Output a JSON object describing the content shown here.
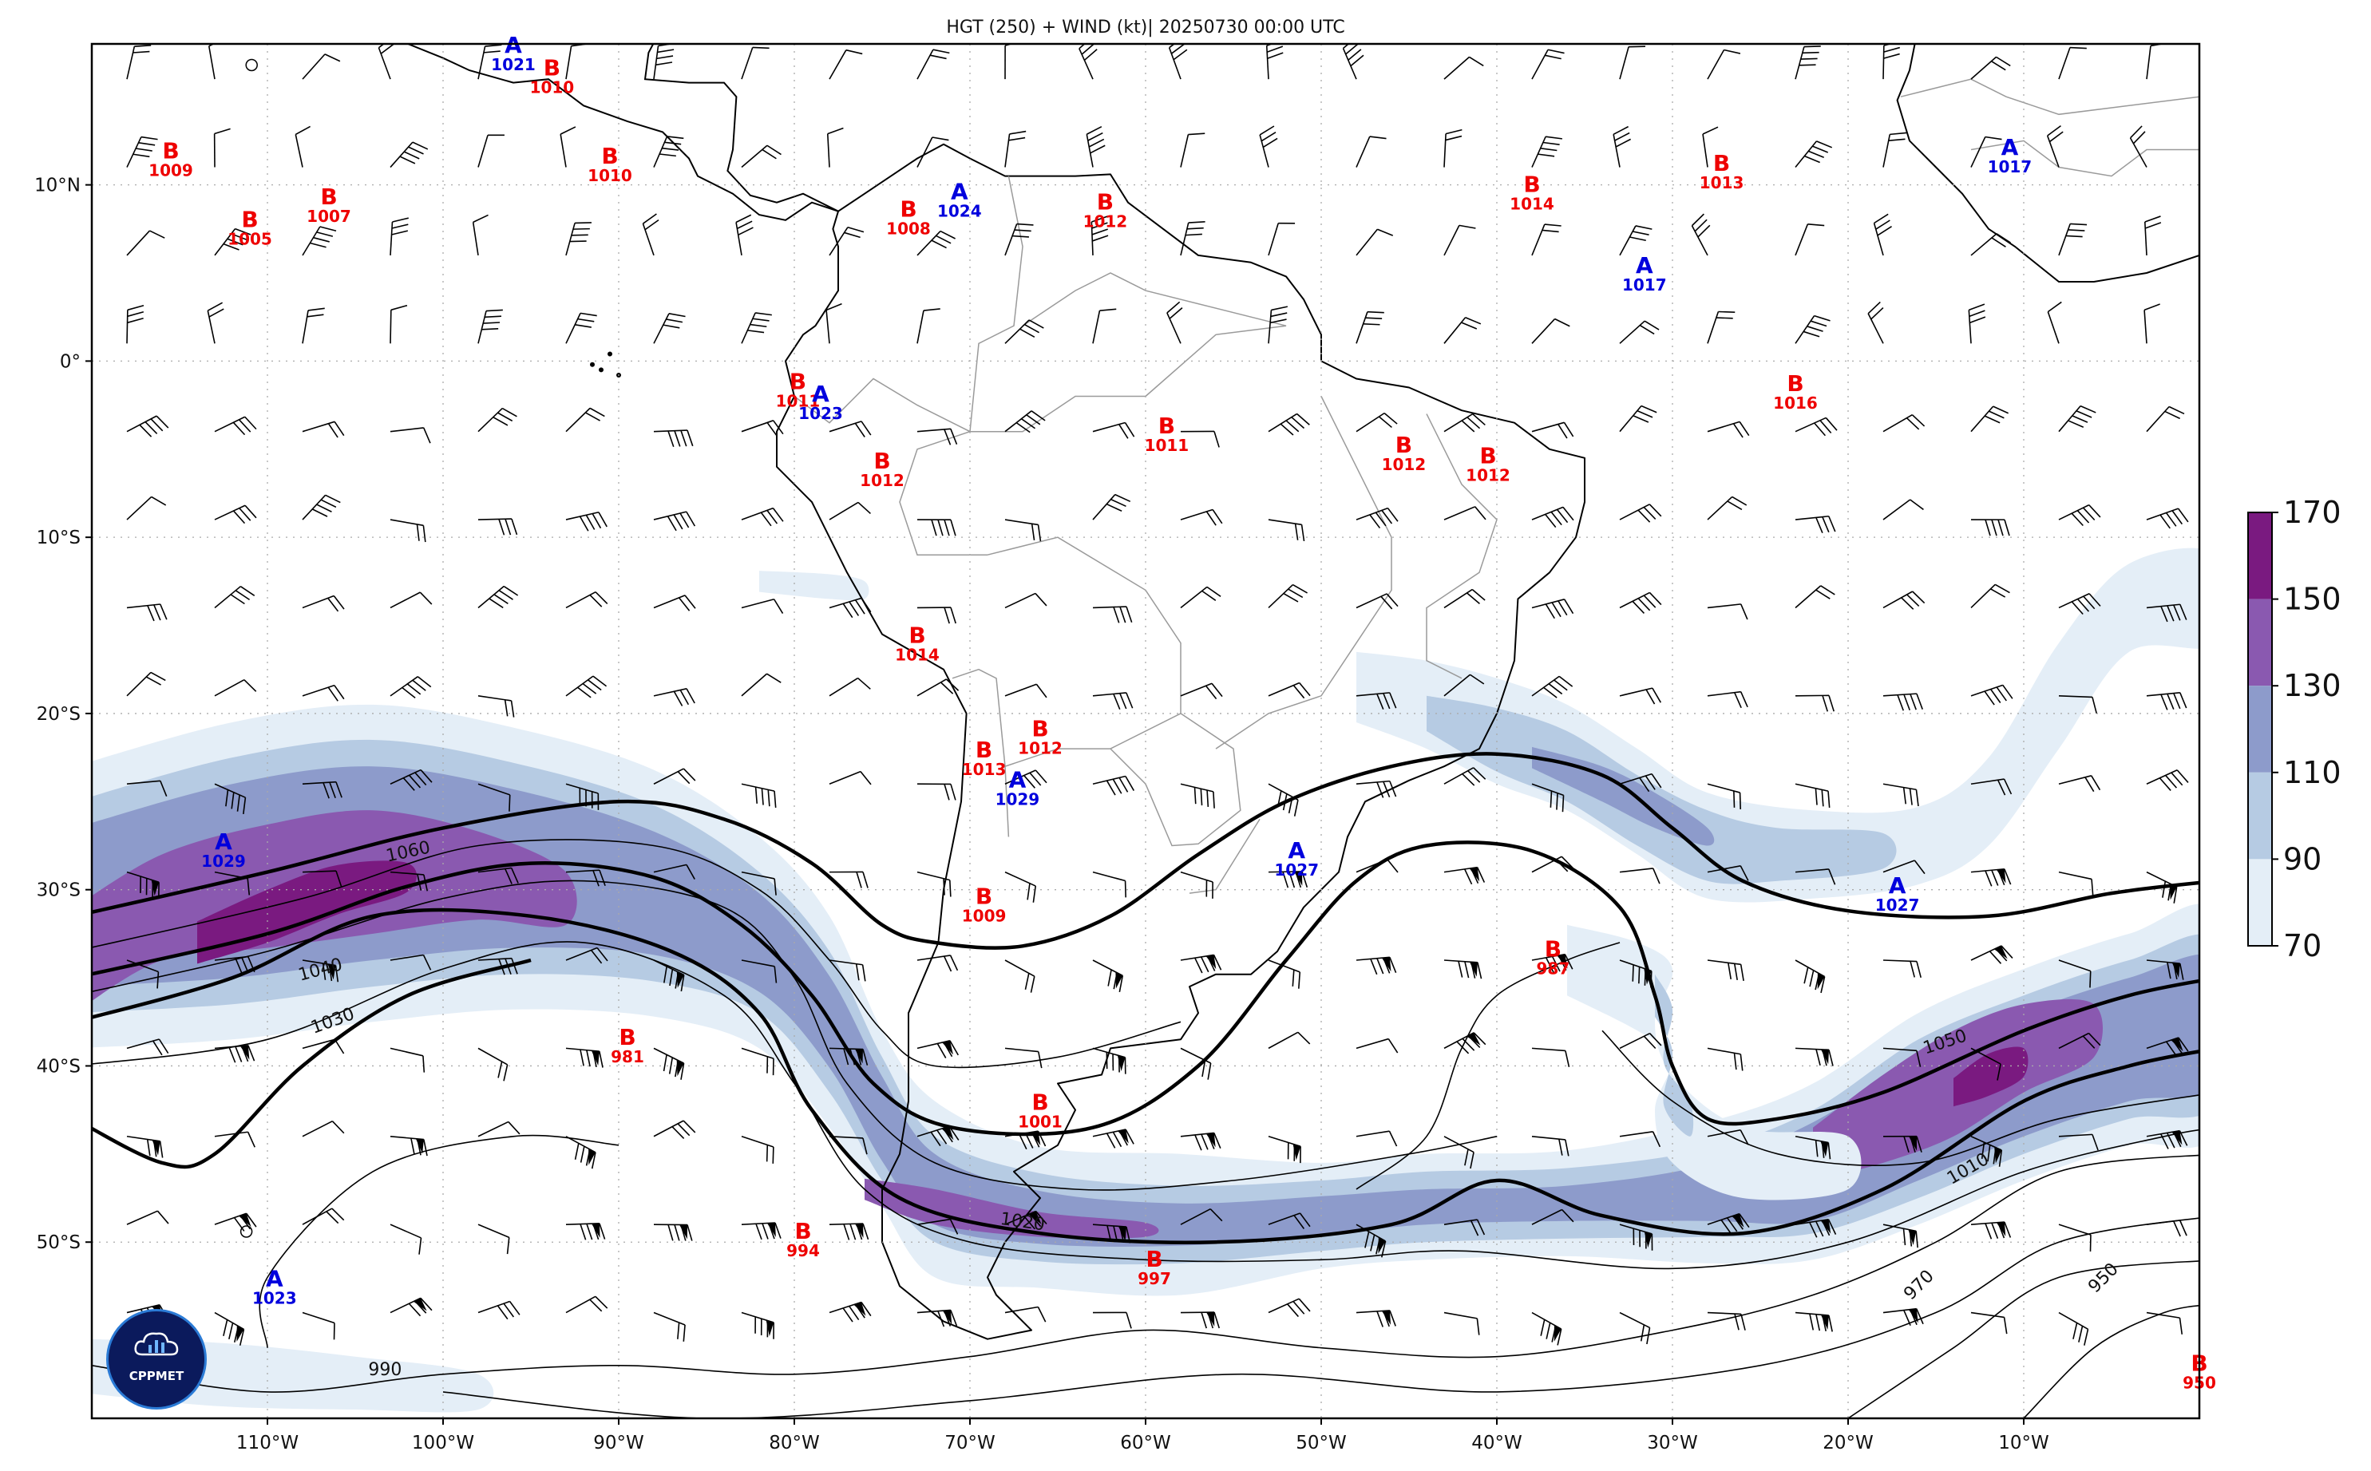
{
  "title": "HGT (250) + WIND (kt)| 20250730 00:00 UTC",
  "logo_text": "CPPMET",
  "lon_ticks": [
    "110°W",
    "100°W",
    "90°W",
    "80°W",
    "70°W",
    "60°W",
    "50°W",
    "40°W",
    "30°W",
    "20°W",
    "10°W"
  ],
  "lat_ticks": [
    "10°N",
    "0°",
    "10°S",
    "20°S",
    "30°S",
    "40°S",
    "50°S"
  ],
  "colorbar_ticks": [
    "70",
    "90",
    "110",
    "130",
    "150",
    "170"
  ],
  "colorbar_colors": [
    "#e4eef7",
    "#b6cbe3",
    "#8d9bcb",
    "#8a59b0",
    "#7a1a80"
  ],
  "pressure_centers": [
    {
      "type": "A",
      "value": "1021",
      "color": "#0000dd",
      "lon": -96,
      "lat": 17.5
    },
    {
      "type": "B",
      "value": "1010",
      "color": "#ee0000",
      "lon": -93.8,
      "lat": 16.2
    },
    {
      "type": "B",
      "value": "1009",
      "color": "#ee0000",
      "lon": -115.5,
      "lat": 11.5
    },
    {
      "type": "B",
      "value": "1005",
      "color": "#ee0000",
      "lon": -111,
      "lat": 7.6
    },
    {
      "type": "B",
      "value": "1007",
      "color": "#ee0000",
      "lon": -106.5,
      "lat": 8.9
    },
    {
      "type": "B",
      "value": "1010",
      "color": "#ee0000",
      "lon": -90.5,
      "lat": 11.2
    },
    {
      "type": "B",
      "value": "1008",
      "color": "#ee0000",
      "lon": -73.5,
      "lat": 8.2
    },
    {
      "type": "A",
      "value": "1024",
      "color": "#0000dd",
      "lon": -70.6,
      "lat": 9.2
    },
    {
      "type": "B",
      "value": "1012",
      "color": "#ee0000",
      "lon": -62.3,
      "lat": 8.6
    },
    {
      "type": "B",
      "value": "1014",
      "color": "#ee0000",
      "lon": -38,
      "lat": 9.6
    },
    {
      "type": "B",
      "value": "1013",
      "color": "#ee0000",
      "lon": -27.2,
      "lat": 10.8
    },
    {
      "type": "A",
      "value": "1017",
      "color": "#0000dd",
      "lon": -10.8,
      "lat": 11.7
    },
    {
      "type": "A",
      "value": "1017",
      "color": "#0000dd",
      "lon": -31.6,
      "lat": 5
    },
    {
      "type": "B",
      "value": "1011",
      "color": "#ee0000",
      "lon": -79.8,
      "lat": -1.6
    },
    {
      "type": "A",
      "value": "1023",
      "color": "#0000dd",
      "lon": -78.5,
      "lat": -2.3
    },
    {
      "type": "B",
      "value": "1016",
      "color": "#ee0000",
      "lon": -23,
      "lat": -1.7
    },
    {
      "type": "B",
      "value": "1011",
      "color": "#ee0000",
      "lon": -58.8,
      "lat": -4.1
    },
    {
      "type": "B",
      "value": "1012",
      "color": "#ee0000",
      "lon": -75,
      "lat": -6.1
    },
    {
      "type": "B",
      "value": "1012",
      "color": "#ee0000",
      "lon": -45.3,
      "lat": -5.2
    },
    {
      "type": "B",
      "value": "1012",
      "color": "#ee0000",
      "lon": -40.5,
      "lat": -5.8
    },
    {
      "type": "B",
      "value": "1014",
      "color": "#ee0000",
      "lon": -73,
      "lat": -16
    },
    {
      "type": "B",
      "value": "1013",
      "color": "#ee0000",
      "lon": -69.2,
      "lat": -22.5
    },
    {
      "type": "B",
      "value": "1012",
      "color": "#ee0000",
      "lon": -66,
      "lat": -21.3
    },
    {
      "type": "A",
      "value": "1029",
      "color": "#0000dd",
      "lon": -67.3,
      "lat": -24.2
    },
    {
      "type": "A",
      "value": "1029",
      "color": "#0000dd",
      "lon": -112.5,
      "lat": -27.7
    },
    {
      "type": "A",
      "value": "1027",
      "color": "#0000dd",
      "lon": -51.4,
      "lat": -28.2
    },
    {
      "type": "B",
      "value": "1009",
      "color": "#ee0000",
      "lon": -69.2,
      "lat": -30.8
    },
    {
      "type": "A",
      "value": "1027",
      "color": "#0000dd",
      "lon": -17.2,
      "lat": -30.2
    },
    {
      "type": "B",
      "value": "987",
      "color": "#ee0000",
      "lon": -36.8,
      "lat": -33.8
    },
    {
      "type": "B",
      "value": "981",
      "color": "#ee0000",
      "lon": -89.5,
      "lat": -38.8
    },
    {
      "type": "B",
      "value": "1001",
      "color": "#ee0000",
      "lon": -66,
      "lat": -42.5
    },
    {
      "type": "B",
      "value": "994",
      "color": "#ee0000",
      "lon": -79.5,
      "lat": -49.8
    },
    {
      "type": "B",
      "value": "997",
      "color": "#ee0000",
      "lon": -59.5,
      "lat": -51.4
    },
    {
      "type": "A",
      "value": "1023",
      "color": "#0000dd",
      "lon": -109.6,
      "lat": -52.5
    },
    {
      "type": "B",
      "value": "950",
      "color": "#ee0000",
      "lon": 0,
      "lat": -57.3
    }
  ],
  "contour_labels": [
    {
      "text": "1060",
      "lon": -102,
      "lat": -27.8,
      "rot": -12
    },
    {
      "text": "1040",
      "lon": -107,
      "lat": -34.5,
      "rot": -15
    },
    {
      "text": "1030",
      "lon": -106.3,
      "lat": -37.4,
      "rot": -20
    },
    {
      "text": "1020",
      "lon": -67,
      "lat": -48.8,
      "rot": 8
    },
    {
      "text": "1050",
      "lon": -14.5,
      "lat": -38.6,
      "rot": -18
    },
    {
      "text": "1010",
      "lon": -13.2,
      "lat": -45.8,
      "rot": -30
    },
    {
      "text": "970",
      "lon": -16,
      "lat": -52.4,
      "rot": -45
    },
    {
      "text": "950",
      "lon": -5.5,
      "lat": -52,
      "rot": -45
    },
    {
      "text": "990",
      "lon": -103.3,
      "lat": -57.2,
      "rot": 0
    }
  ]
}
